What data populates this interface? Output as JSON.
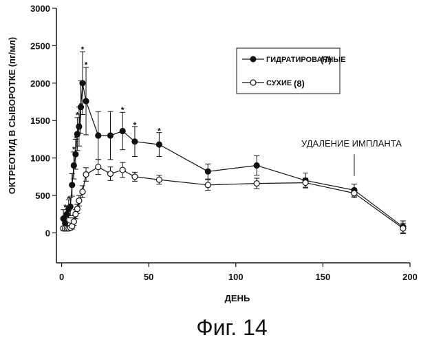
{
  "chart_data": {
    "type": "line",
    "title": "",
    "xlabel": "ДЕНЬ",
    "ylabel": "ОКТРЕОТИД В СЫВОРОТКЕ (пг/мл)",
    "xlim": [
      -3,
      200
    ],
    "ylim": [
      -400,
      3000
    ],
    "x_ticks": [
      0,
      50,
      100,
      150,
      200
    ],
    "y_ticks": [
      0,
      500,
      1000,
      1500,
      2000,
      2500,
      3000
    ],
    "x_tick_labels": [
      "0",
      "50",
      "100",
      "150",
      "200"
    ],
    "y_tick_labels": [
      "0",
      "500",
      "1000",
      "1500",
      "2000",
      "2500",
      "3000"
    ],
    "grid": false,
    "legend_placement": "top-right",
    "series": [
      {
        "name": "ГИДРАТИРОВАННЫЕ",
        "count_label": "(7)",
        "marker": "filled-circle",
        "points": [
          {
            "x": 1,
            "y": 190,
            "err": 120
          },
          {
            "x": 2,
            "y": 130,
            "err": 100
          },
          {
            "x": 3,
            "y": 250,
            "err": 110
          },
          {
            "x": 4,
            "y": 320,
            "err": 120
          },
          {
            "x": 5,
            "y": 350,
            "err": 120
          },
          {
            "x": 6,
            "y": 640,
            "err": 150
          },
          {
            "x": 7,
            "y": 900,
            "err": 180
          },
          {
            "x": 8,
            "y": 1050,
            "err": 200
          },
          {
            "x": 9,
            "y": 1320,
            "err": 220
          },
          {
            "x": 10,
            "y": 1420,
            "err": 260
          },
          {
            "x": 11,
            "y": 1680,
            "err": 350
          },
          {
            "x": 12,
            "y": 2000,
            "err": 420
          },
          {
            "x": 14,
            "y": 1760,
            "err": 450
          },
          {
            "x": 21,
            "y": 1300,
            "err": 320
          },
          {
            "x": 28,
            "y": 1300,
            "err": 320
          },
          {
            "x": 35,
            "y": 1360,
            "err": 250
          },
          {
            "x": 42,
            "y": 1220,
            "err": 200
          },
          {
            "x": 56,
            "y": 1180,
            "err": 160
          },
          {
            "x": 84,
            "y": 820,
            "err": 100
          },
          {
            "x": 112,
            "y": 900,
            "err": 130
          },
          {
            "x": 140,
            "y": 700,
            "err": 100
          },
          {
            "x": 168,
            "y": 570,
            "err": 80
          },
          {
            "x": 196,
            "y": 80,
            "err": 80
          }
        ]
      },
      {
        "name": "СУХИЕ",
        "count_label": "(8)",
        "marker": "open-circle",
        "points": [
          {
            "x": 1,
            "y": 60,
            "err": 30
          },
          {
            "x": 2,
            "y": 60,
            "err": 30
          },
          {
            "x": 3,
            "y": 60,
            "err": 30
          },
          {
            "x": 4,
            "y": 60,
            "err": 30
          },
          {
            "x": 5,
            "y": 70,
            "err": 30
          },
          {
            "x": 6,
            "y": 90,
            "err": 40
          },
          {
            "x": 7,
            "y": 150,
            "err": 50
          },
          {
            "x": 8,
            "y": 250,
            "err": 60
          },
          {
            "x": 9,
            "y": 320,
            "err": 60
          },
          {
            "x": 10,
            "y": 430,
            "err": 70
          },
          {
            "x": 12,
            "y": 550,
            "err": 80
          },
          {
            "x": 14,
            "y": 780,
            "err": 90
          },
          {
            "x": 21,
            "y": 880,
            "err": 100
          },
          {
            "x": 28,
            "y": 790,
            "err": 90
          },
          {
            "x": 35,
            "y": 840,
            "err": 100
          },
          {
            "x": 42,
            "y": 750,
            "err": 60
          },
          {
            "x": 56,
            "y": 710,
            "err": 60
          },
          {
            "x": 84,
            "y": 640,
            "err": 70
          },
          {
            "x": 112,
            "y": 660,
            "err": 70
          },
          {
            "x": 140,
            "y": 670,
            "err": 60
          },
          {
            "x": 168,
            "y": 530,
            "err": 60
          },
          {
            "x": 196,
            "y": 60,
            "err": 70
          }
        ]
      }
    ],
    "significance_marks": [
      {
        "x": 2,
        "y": 340,
        "label": "*"
      },
      {
        "x": 4,
        "y": 450,
        "label": "*"
      },
      {
        "x": 7,
        "y": 1110,
        "label": "*"
      },
      {
        "x": 8,
        "y": 1260,
        "label": "*"
      },
      {
        "x": 9,
        "y": 1570,
        "label": "*"
      },
      {
        "x": 11,
        "y": 1700,
        "label": "*"
      },
      {
        "x": 12,
        "y": 2450,
        "label": "*"
      },
      {
        "x": 14,
        "y": 2240,
        "label": "*"
      },
      {
        "x": 35,
        "y": 1640,
        "label": "*"
      },
      {
        "x": 42,
        "y": 1440,
        "label": "*"
      },
      {
        "x": 56,
        "y": 1360,
        "label": "*"
      }
    ],
    "annotation": {
      "text": "УДАЛЕНИЕ ИМПЛАНТА",
      "arrow_x": 168,
      "arrow_y_from": 1050,
      "arrow_y_to": 760
    },
    "caption": "Фиг. 14",
    "colors": {
      "line": "#111111",
      "marker_fill": "#111111",
      "open_fill": "#ffffff",
      "background": "#ffffff"
    }
  }
}
